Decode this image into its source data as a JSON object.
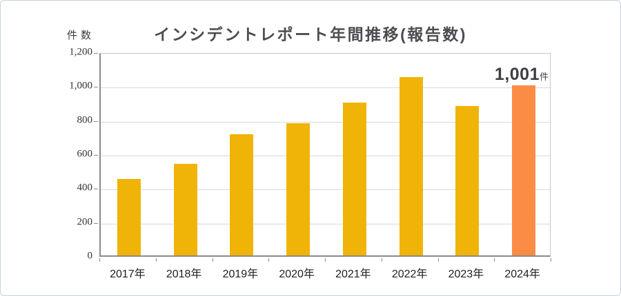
{
  "chart_data": {
    "type": "bar",
    "title": "インシデントレポート年間推移(報告数)",
    "y_unit_label": "件数",
    "categories": [
      "2017年",
      "2018年",
      "2019年",
      "2020年",
      "2021年",
      "2022年",
      "2023年",
      "2024年"
    ],
    "values": [
      450,
      540,
      715,
      780,
      900,
      1050,
      880,
      1001
    ],
    "highlight_index": 7,
    "highlight_annotation": {
      "value": "1,001",
      "unit": "件"
    },
    "xlabel": "",
    "ylabel": "件数",
    "ylim": [
      0,
      1200
    ],
    "ytick_step": 200,
    "ytick_labels": [
      "0",
      "200",
      "400",
      "600",
      "800",
      "1,000",
      "1,200"
    ],
    "grid": "horizontal",
    "legend": "none",
    "colors": {
      "bar": "#f0b408",
      "highlight_bar": "#fa8c46",
      "grid_line": "#d8d8d8",
      "axis_line": "#8a8a8a",
      "title_text": "#4c4c51",
      "tick_text": "#333333",
      "category_text": "#1e1e1e",
      "annotation_text": "#3e3e43",
      "card_border": "#c8d1dc"
    }
  }
}
